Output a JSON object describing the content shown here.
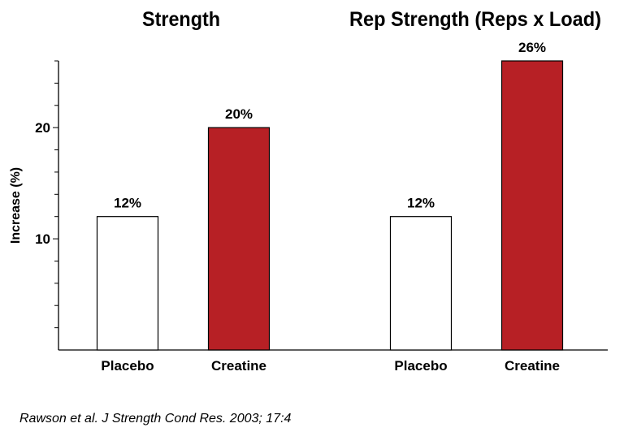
{
  "chart_data": {
    "type": "bar",
    "ylabel": "Increase (%)",
    "ylim": [
      0,
      26
    ],
    "yticks_major": [
      10,
      20
    ],
    "yticks_minor_step": 2,
    "grid": false,
    "bar_colors": {
      "Placebo": "#ffffff",
      "Creatine": "#b72025"
    },
    "panels": [
      {
        "title": "Strength",
        "categories": [
          "Placebo",
          "Creatine"
        ],
        "values": [
          12,
          20
        ],
        "data_labels": [
          "12%",
          "20%"
        ]
      },
      {
        "title": "Rep Strength (Reps x Load)",
        "categories": [
          "Placebo",
          "Creatine"
        ],
        "values": [
          12,
          26
        ],
        "data_labels": [
          "12%",
          "26%"
        ]
      }
    ]
  },
  "citation": "Rawson et al. J Strength Cond Res. 2003; 17:4"
}
